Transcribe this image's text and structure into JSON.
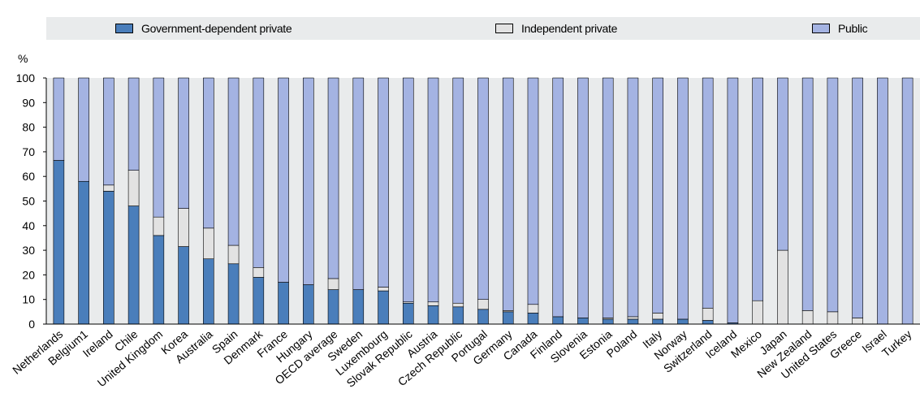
{
  "chart_data": {
    "type": "bar",
    "stacked": true,
    "unit_label": "%",
    "ylim": [
      0,
      100
    ],
    "yticks": [
      0,
      10,
      20,
      30,
      40,
      50,
      60,
      70,
      80,
      90,
      100
    ],
    "legend_position": "top",
    "categories": [
      "Netherlands",
      "Belgium1",
      "Ireland",
      "Chile",
      "United Kingdom",
      "Korea",
      "Australia",
      "Spain",
      "Denmark",
      "France",
      "Hungary",
      "OECD average",
      "Sweden",
      "Luxembourg",
      "Slovak Republic",
      "Austria",
      "Czech Republic",
      "Portugal",
      "Germany",
      "Canada",
      "Finland",
      "Slovenia",
      "Estonia",
      "Poland",
      "Italy",
      "Norway",
      "Switzerland",
      "Iceland",
      "Mexico",
      "Japan",
      "New Zealand",
      "United States",
      "Greece",
      "Israel",
      "Turkey"
    ],
    "series": [
      {
        "name": "Government-dependent private",
        "color": "#4a7ebb",
        "values": [
          66.5,
          58,
          54,
          48,
          36,
          31.5,
          26.5,
          24.5,
          19,
          17,
          16,
          14,
          14,
          13.5,
          8.5,
          7.5,
          7,
          6,
          5,
          4.5,
          3,
          2.5,
          2,
          2,
          2,
          2,
          1.5,
          0.5,
          0,
          0,
          0,
          0,
          0,
          0,
          0
        ]
      },
      {
        "name": "Independent private",
        "color": "#e2e2e2",
        "values": [
          0,
          0,
          2.5,
          14.5,
          7.5,
          15.5,
          12.5,
          7.5,
          4,
          0,
          0,
          4.5,
          0,
          1.5,
          0.5,
          1.5,
          1.5,
          4,
          0.5,
          3.5,
          0,
          0,
          0.5,
          1,
          2.5,
          0,
          5,
          0,
          9.5,
          30,
          5.5,
          5,
          2.5,
          0,
          0
        ]
      },
      {
        "name": "Public",
        "color": "#a4b3e2",
        "values": [
          33.5,
          42,
          43.5,
          37.5,
          56.5,
          53,
          61,
          68,
          77,
          83,
          84,
          81.5,
          86,
          85,
          91,
          91,
          91.5,
          90,
          94.5,
          92,
          97,
          97.5,
          97.5,
          97,
          95.5,
          98,
          93.5,
          99.5,
          90.5,
          70,
          94.5,
          95,
          97.5,
          100,
          100
        ]
      }
    ]
  }
}
